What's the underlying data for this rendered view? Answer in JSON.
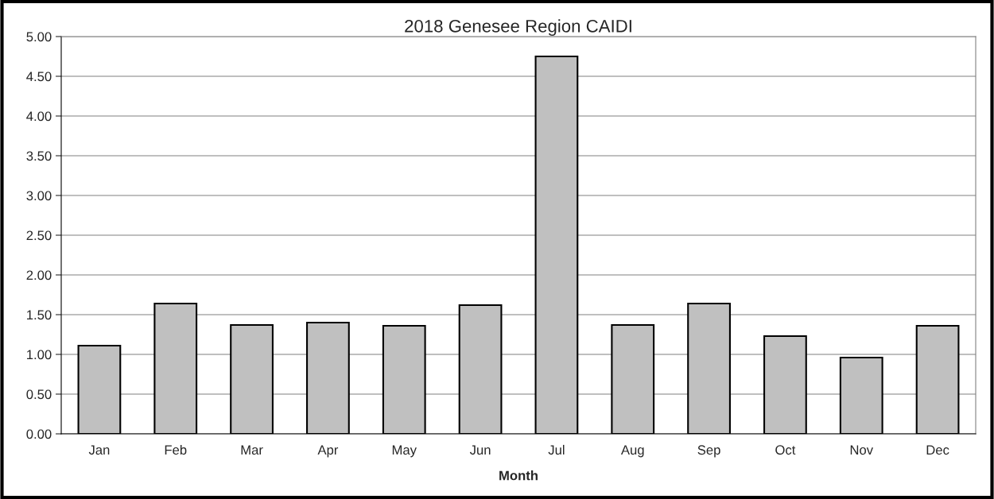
{
  "chart_data": {
    "type": "bar",
    "title": "2018 Genesee Region CAIDI",
    "xlabel": "Month",
    "categories": [
      "Jan",
      "Feb",
      "Mar",
      "Apr",
      "May",
      "Jun",
      "Jul",
      "Aug",
      "Sep",
      "Oct",
      "Nov",
      "Dec"
    ],
    "values": [
      1.11,
      1.64,
      1.37,
      1.4,
      1.36,
      1.62,
      4.75,
      1.37,
      1.64,
      1.23,
      0.96,
      1.36
    ],
    "color": "#c0c0c0",
    "ylim": [
      0,
      5
    ],
    "yticks": [
      {
        "value": 0,
        "label": "0.00"
      },
      {
        "value": 0.5,
        "label": "0.50"
      },
      {
        "value": 1,
        "label": "1.00"
      },
      {
        "value": 1.5,
        "label": "1.50"
      },
      {
        "value": 2,
        "label": "2.00"
      },
      {
        "value": 2.5,
        "label": "2.50"
      },
      {
        "value": 3,
        "label": "3.00"
      },
      {
        "value": 3.5,
        "label": "3.50"
      },
      {
        "value": 4,
        "label": "4.00"
      },
      {
        "value": 4.5,
        "label": "4.50"
      },
      {
        "value": 5,
        "label": "5.00"
      }
    ],
    "grid": "y"
  }
}
